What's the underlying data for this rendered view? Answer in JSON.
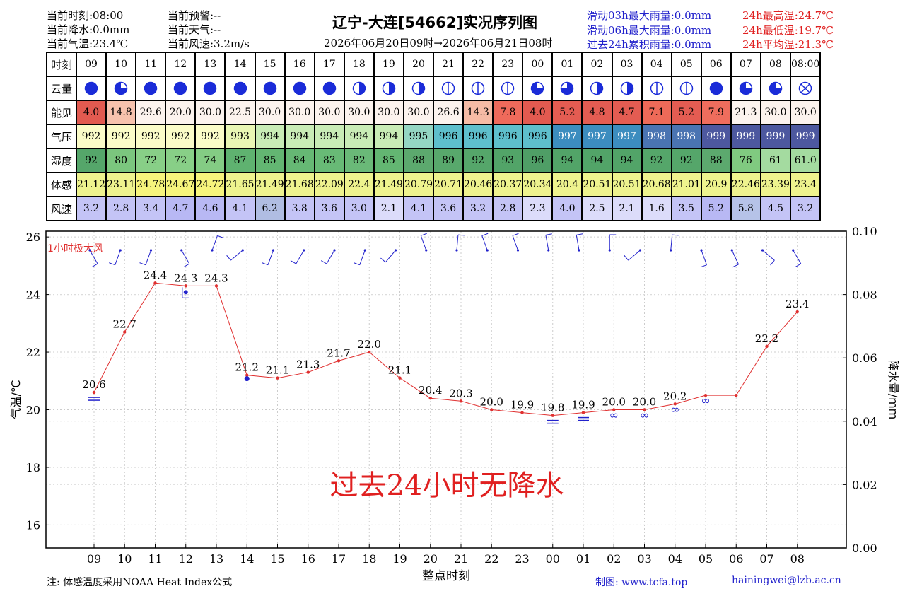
{
  "header": {
    "left": [
      "当前时刻:08:00",
      "当前降水:0.0mm",
      "当前气温:23.4℃"
    ],
    "mid": [
      "当前预警:--",
      "当前天气:--",
      "当前风速:3.2m/s"
    ],
    "title": "辽宁-大连[54662]实况序列图",
    "subtitle": "2026年06月20日09时→2026年06月21日08时",
    "rain": [
      "滑动03h最大雨量:0.0mm",
      "滑动06h最大雨量:0.0mm",
      "过去24h累积雨量:0.0mm"
    ],
    "temp": [
      "24h最高温:24.7℃",
      "24h最低温:19.7℃",
      "24h平均温:21.3℃"
    ]
  },
  "table": {
    "row_labels": [
      "时刻",
      "云量",
      "能见",
      "气压",
      "湿度",
      "体感",
      "风速"
    ],
    "times": [
      "09",
      "10",
      "11",
      "12",
      "13",
      "14",
      "15",
      "16",
      "17",
      "18",
      "19",
      "20",
      "21",
      "22",
      "23",
      "00",
      "01",
      "02",
      "03",
      "04",
      "05",
      "06",
      "07",
      "08",
      "08:00"
    ],
    "cloud": [
      "overcast",
      "seven-eighths",
      "overcast",
      "overcast",
      "overcast",
      "overcast",
      "overcast",
      "overcast",
      "overcast",
      "half",
      "half",
      "half",
      "quarter-bar",
      "quarter-bar",
      "quarter-bar",
      "seven-eighths",
      "five-eighths",
      "half",
      "half",
      "quarter-bar",
      "quarter-bar",
      "overcast",
      "seven-eighths",
      "seven-eighths",
      "obscured"
    ],
    "vis": [
      "4.0",
      "14.8",
      "29.6",
      "20.0",
      "30.0",
      "22.5",
      "30.0",
      "30.0",
      "30.0",
      "30.0",
      "30.0",
      "30.0",
      "26.6",
      "14.3",
      "7.8",
      "4.0",
      "5.2",
      "4.8",
      "4.7",
      "7.1",
      "5.2",
      "7.9",
      "21.3",
      "30.0",
      "30.0"
    ],
    "pres": [
      "992",
      "992",
      "992",
      "992",
      "992",
      "993",
      "994",
      "994",
      "994",
      "994",
      "994",
      "995",
      "996",
      "996",
      "996",
      "996",
      "997",
      "997",
      "997",
      "998",
      "998",
      "999",
      "999",
      "999",
      "999"
    ],
    "hum": [
      "92",
      "80",
      "72",
      "72",
      "74",
      "87",
      "85",
      "84",
      "83",
      "82",
      "85",
      "88",
      "89",
      "92",
      "93",
      "96",
      "94",
      "94",
      "94",
      "92",
      "92",
      "88",
      "76",
      "61",
      "61.0"
    ],
    "feel": [
      "21.12",
      "23.11",
      "24.78",
      "24.67",
      "24.72",
      "21.65",
      "21.49",
      "21.68",
      "22.09",
      "22.4",
      "21.49",
      "20.79",
      "20.71",
      "20.46",
      "20.37",
      "20.34",
      "20.4",
      "20.51",
      "20.51",
      "20.68",
      "21.01",
      "20.9",
      "22.46",
      "23.39",
      "23.4"
    ],
    "wind": [
      "3.2",
      "2.8",
      "3.4",
      "4.7",
      "4.6",
      "4.1",
      "6.2",
      "3.8",
      "3.6",
      "3.0",
      "2.1",
      "4.1",
      "3.6",
      "3.2",
      "2.8",
      "2.3",
      "4.0",
      "2.5",
      "2.1",
      "1.6",
      "3.5",
      "5.2",
      "5.8",
      "4.5",
      "3.2"
    ]
  },
  "colors": {
    "vis": [
      "#e25a50",
      "#f7c2ad",
      "#fcf3ee",
      "#fcf3ee",
      "#fcf3ee",
      "#fcf3ee",
      "#fcf3ee",
      "#fcf3ee",
      "#fcf3ee",
      "#fcf3ee",
      "#fcf3ee",
      "#fcf3ee",
      "#fcf3ee",
      "#f6bba5",
      "#ef6a5b",
      "#e25a50",
      "#e45c52",
      "#e45c52",
      "#e45c52",
      "#ee6a58",
      "#e45c52",
      "#ef6d5d",
      "#fcf3ee",
      "#fcf3ee",
      "#fcf3ee"
    ],
    "pres": [
      "#fbfcc8",
      "#fbfcc8",
      "#fbfcc8",
      "#fbfcc8",
      "#fbfcc8",
      "#e9f6b4",
      "#c9ecb6",
      "#c9ecb6",
      "#c9ecb6",
      "#c9ecb6",
      "#c9ecb6",
      "#94d6c3",
      "#5ebfcc",
      "#5ebfcc",
      "#5ebfcc",
      "#5ebfcc",
      "#3c8dbf",
      "#3c8dbf",
      "#3c8dbf",
      "#4a74b2",
      "#4a74b2",
      "#4d589f",
      "#4d589f",
      "#4d589f",
      "#4d589f"
    ],
    "hum": [
      "#55a66a",
      "#7bc67e",
      "#88cf87",
      "#88cf87",
      "#84cc84",
      "#5fb270",
      "#63b672",
      "#66b874",
      "#68ba76",
      "#6ab978",
      "#63b672",
      "#5ca96e",
      "#58a86c",
      "#55a66a",
      "#52a468",
      "#4f9e66",
      "#52a468",
      "#52a468",
      "#52a468",
      "#55a66a",
      "#55a66a",
      "#5ca96e",
      "#80ca80",
      "#a4dba0",
      "#a4dba0"
    ],
    "feel": [
      "#eef38e",
      "#eef38e",
      "#f6f47c",
      "#f6f47c",
      "#f6f47c",
      "#eef38e",
      "#eef38e",
      "#eef38e",
      "#eef38e",
      "#eef38e",
      "#eef38e",
      "#eef38e",
      "#eef38e",
      "#eef38e",
      "#eef38e",
      "#eef38e",
      "#eef38e",
      "#eef38e",
      "#eef38e",
      "#eef38e",
      "#eef38e",
      "#eef38e",
      "#eef38e",
      "#eef38e",
      "#eef38e"
    ],
    "wind": [
      "#c4c4f6",
      "#c4c4f6",
      "#c4c4f6",
      "#b8b8f4",
      "#b8b8f4",
      "#c4c4f6",
      "#b0bde2",
      "#c4c4f6",
      "#c4c4f6",
      "#c4c4f6",
      "#dcdcfa",
      "#c4c4f6",
      "#c4c4f6",
      "#c4c4f6",
      "#c4c4f6",
      "#dcdcfa",
      "#c4c4f6",
      "#dcdcfa",
      "#dcdcfa",
      "#dcdcfa",
      "#c4c4f6",
      "#b8b8f4",
      "#b6c3e8",
      "#c4c4f6",
      "#c4c4f6"
    ],
    "line": "#e03030",
    "axis_blue": "#2222cc"
  },
  "chart_data": {
    "type": "line",
    "x": [
      "09",
      "10",
      "11",
      "12",
      "13",
      "14",
      "15",
      "16",
      "17",
      "18",
      "19",
      "20",
      "21",
      "22",
      "23",
      "00",
      "01",
      "02",
      "03",
      "04",
      "05",
      "06",
      "07",
      "08"
    ],
    "series": [
      {
        "values": [
          20.6,
          22.7,
          24.4,
          24.3,
          24.3,
          21.2,
          21.1,
          21.3,
          21.7,
          22.0,
          21.1,
          20.4,
          20.3,
          20.0,
          19.9,
          19.8,
          19.9,
          20.0,
          20.0,
          20.2,
          20.5,
          20.5,
          22.2,
          23.4
        ]
      }
    ],
    "labels": [
      "20.6",
      "22.7",
      "24.4",
      "24.3",
      "24.3",
      "21.2",
      "21.1",
      "21.3",
      "21.7",
      "22.0",
      "21.1",
      "20.4",
      "20.3",
      "20.0",
      "19.9",
      "19.8",
      "19.9",
      "20.0",
      "20.0",
      "20.2",
      "",
      "",
      "22.2",
      "23.4"
    ],
    "xlabel": "整点时刻",
    "ylabel": "气温/℃",
    "y2label": "降水量/mm",
    "ylim": [
      15.2,
      26.2
    ],
    "yticks": [
      16,
      18,
      20,
      22,
      24,
      26
    ],
    "y2lim": [
      0.0,
      0.1
    ],
    "y2ticks": [
      "0.00",
      "0.02",
      "0.04",
      "0.06",
      "0.08",
      "0.10"
    ],
    "wind_label": "1小时极大风",
    "annotation": "过去24小时无降水",
    "grid": true
  },
  "footer": {
    "note": "注: 体感温度采用NOAA Heat Index公式",
    "credit": "制图: www.tcfa.top",
    "email": "hainingwei@lzb.ac.cn"
  }
}
